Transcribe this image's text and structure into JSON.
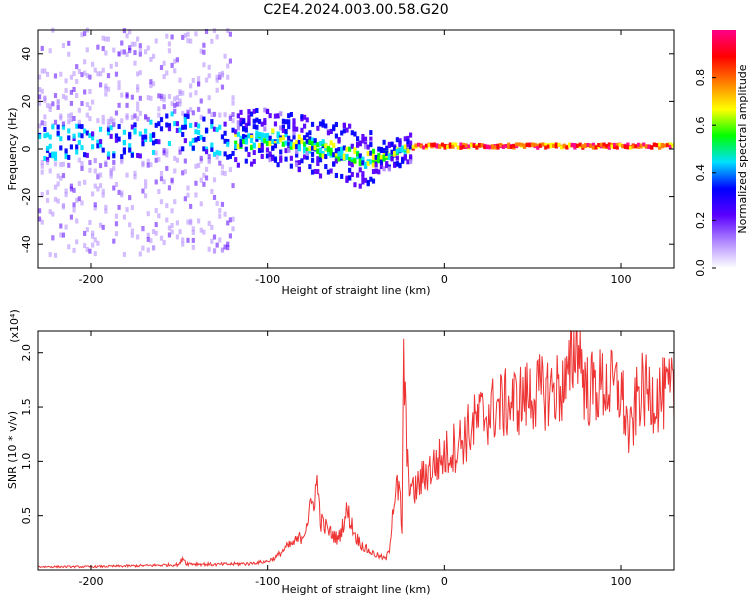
{
  "figure": {
    "title": "C2E4.2024.003.00.58.G20"
  },
  "chart_data": [
    {
      "type": "heatmap",
      "xlabel": "Height of straight line (km)",
      "ylabel": "Frequency (Hz)",
      "xlim": [
        -230,
        130
      ],
      "ylim": [
        -50,
        50
      ],
      "xticks": [
        -200,
        -100,
        0,
        100
      ],
      "yticks": [
        -40,
        -20,
        0,
        20,
        40
      ],
      "grid": false,
      "ridge": {
        "x": [
          -230,
          -210,
          -190,
          -170,
          -155,
          -140,
          -120,
          -100,
          -85,
          -70,
          -55,
          -45,
          -35,
          -25,
          -15,
          0,
          15,
          40,
          80,
          130
        ],
        "frequency": [
          2,
          3,
          2,
          4,
          8,
          6,
          3,
          5,
          3,
          0,
          -2,
          -5,
          -3,
          -1,
          1,
          1,
          1,
          1,
          1,
          1
        ]
      },
      "colorbar": {
        "label": "Normalized spectral amplitude",
        "range": [
          0.0,
          1.0
        ],
        "ticks": [
          "0.0",
          "0.2",
          "0.4",
          "0.6",
          "0.8"
        ],
        "colors": [
          "#ffffff",
          "#b088ff",
          "#5a00ff",
          "#0000ff",
          "#00e0ff",
          "#00ff00",
          "#ffff00",
          "#ff8000",
          "#ff0000",
          "#ff0088"
        ]
      }
    },
    {
      "type": "line",
      "xlabel": "Height of straight line (km)",
      "ylabel": "SNR (10 * v/v)",
      "multiplier": "(x10⁴)",
      "xlim": [
        -230,
        130
      ],
      "ylim": [
        0,
        2.2
      ],
      "xticks": [
        -200,
        -100,
        0,
        100
      ],
      "yticks": [
        "0.5",
        "1.0",
        "1.5",
        "2.0"
      ],
      "ytick_values": [
        0.5,
        1.0,
        1.5,
        2.0
      ],
      "grid": false,
      "series": [
        {
          "color": "#ee3333",
          "x": [
            -230,
            -200,
            -170,
            -150,
            -148,
            -146,
            -130,
            -110,
            -100,
            -95,
            -90,
            -85,
            -80,
            -74,
            -72,
            -70,
            -65,
            -60,
            -55,
            -50,
            -45,
            -40,
            -36,
            -33,
            -31,
            -29,
            -27,
            -25,
            -24,
            -23,
            -21,
            -18,
            -10,
            0,
            10,
            20,
            30,
            40,
            50,
            60,
            70,
            75,
            80,
            90,
            100,
            105,
            110,
            120,
            130
          ],
          "y": [
            0.03,
            0.03,
            0.04,
            0.05,
            0.12,
            0.06,
            0.05,
            0.06,
            0.08,
            0.12,
            0.2,
            0.25,
            0.32,
            0.65,
            0.8,
            0.45,
            0.35,
            0.28,
            0.55,
            0.3,
            0.2,
            0.15,
            0.12,
            0.1,
            0.2,
            0.6,
            0.75,
            0.7,
            0.2,
            1.95,
            0.95,
            0.7,
            0.9,
            1.05,
            1.2,
            1.4,
            1.5,
            1.55,
            1.62,
            1.65,
            1.7,
            2.2,
            1.65,
            1.7,
            1.65,
            1.2,
            1.65,
            1.6,
            1.62
          ]
        }
      ]
    }
  ]
}
